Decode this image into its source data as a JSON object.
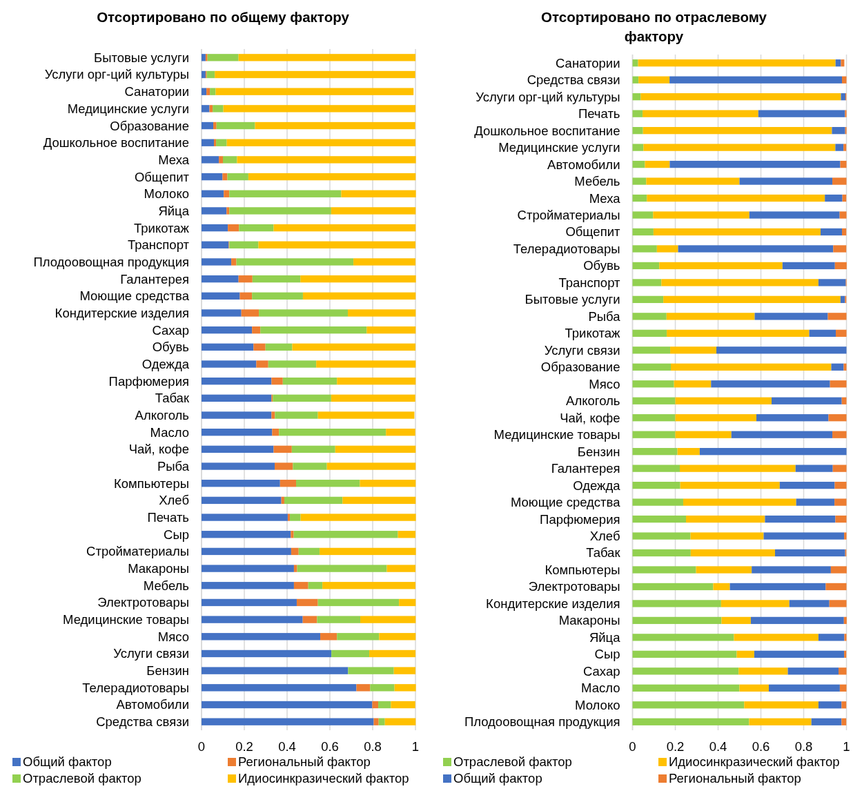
{
  "chart_data": [
    {
      "type": "bar",
      "orientation": "horizontal",
      "stacked": true,
      "title": "Отсортировано по общему фактору",
      "categories": [
        "Бытовые услуги",
        "Услуги орг-ций культуры",
        "Санатории",
        "Медицинские услуги",
        "Образование",
        "Дошкольное воспитание",
        "Меха",
        "Общепит",
        "Молоко",
        "Яйца",
        "Трикотаж",
        "Транспорт",
        "Плодоовощная продукция",
        "Галантерея",
        "Моющие средства",
        "Кондитерские изделия",
        "Сахар",
        "Обувь",
        "Одежда",
        "Парфюмерия",
        "Табак",
        "Алкоголь",
        "Масло",
        "Чай, кофе",
        "Рыба",
        "Компьютеры",
        "Хлеб",
        "Печать",
        "Сыр",
        "Стройматериалы",
        "Макароны",
        "Мебель",
        "Электротовары",
        "Медицинские товары",
        "Мясо",
        "Услуги связи",
        "Бензин",
        "Телерадиотовары",
        "Автомобили",
        "Средства связи"
      ],
      "series": [
        {
          "name": "Общий фактор",
          "color": "#4472c4",
          "values": [
            0.019,
            0.019,
            0.023,
            0.037,
            0.055,
            0.058,
            0.081,
            0.098,
            0.104,
            0.117,
            0.123,
            0.127,
            0.139,
            0.173,
            0.179,
            0.186,
            0.236,
            0.243,
            0.256,
            0.327,
            0.327,
            0.327,
            0.33,
            0.337,
            0.342,
            0.367,
            0.373,
            0.403,
            0.417,
            0.419,
            0.432,
            0.432,
            0.445,
            0.473,
            0.555,
            0.607,
            0.685,
            0.724,
            0.798,
            0.805
          ]
        },
        {
          "name": "Региональный фактор",
          "color": "#ed7d31",
          "values": [
            0.009,
            0.005,
            0.016,
            0.015,
            0.015,
            0.01,
            0.019,
            0.023,
            0.026,
            0.013,
            0.052,
            0.003,
            0.024,
            0.065,
            0.057,
            0.082,
            0.039,
            0.056,
            0.056,
            0.053,
            0.006,
            0.016,
            0.032,
            0.085,
            0.085,
            0.075,
            0.014,
            0.01,
            0.014,
            0.035,
            0.015,
            0.067,
            0.099,
            0.067,
            0.078,
            0,
            0,
            0.064,
            0.028,
            0.023
          ]
        },
        {
          "name": "Отраслевой фактор",
          "color": "#92d050",
          "values": [
            0.145,
            0.038,
            0.027,
            0.05,
            0.18,
            0.05,
            0.066,
            0.098,
            0.523,
            0.476,
            0.162,
            0.136,
            0.547,
            0.224,
            0.238,
            0.416,
            0.497,
            0.125,
            0.224,
            0.253,
            0.273,
            0.201,
            0.5,
            0.203,
            0.159,
            0.298,
            0.272,
            0.05,
            0.487,
            0.098,
            0.419,
            0.066,
            0.379,
            0.202,
            0.197,
            0.177,
            0.214,
            0.114,
            0.059,
            0.029
          ]
        },
        {
          "name": "Идиосинкразический фактор",
          "color": "#ffc000",
          "values": [
            0.827,
            0.937,
            0.925,
            0.898,
            0.749,
            0.882,
            0.836,
            0.782,
            0.349,
            0.395,
            0.664,
            0.734,
            0.29,
            0.54,
            0.527,
            0.317,
            0.229,
            0.576,
            0.465,
            0.368,
            0.393,
            0.451,
            0.137,
            0.376,
            0.415,
            0.261,
            0.342,
            0.539,
            0.082,
            0.45,
            0.134,
            0.435,
            0.078,
            0.259,
            0.171,
            0.216,
            0.101,
            0.1,
            0.114,
            0.144
          ]
        }
      ],
      "xlim": [
        0,
        1
      ],
      "xticks": [
        0,
        0.2,
        0.4,
        0.6,
        0.8,
        1
      ],
      "grid": "x",
      "legend": "bottom"
    },
    {
      "type": "bar",
      "orientation": "horizontal",
      "stacked": true,
      "title": "Отсортировано по отраслевому фактору",
      "categories": [
        "Санатории",
        "Средства связи",
        "Услуги орг-ций культуры",
        "Печать",
        "Дошкольное воспитание",
        "Медицинские услуги",
        "Автомобили",
        "Мебель",
        "Меха",
        "Стройматериалы",
        "Общепит",
        "Телерадиотовары",
        "Обувь",
        "Транспорт",
        "Бытовые услуги",
        "Рыба",
        "Трикотаж",
        "Услуги связи",
        "Образование",
        "Мясо",
        "Алкоголь",
        "Чай, кофе",
        "Медицинские товары",
        "Бензин",
        "Галантерея",
        "Одежда",
        "Моющие средства",
        "Парфюмерия",
        "Хлеб",
        "Табак",
        "Компьютеры",
        "Электротовары",
        "Кондитерские изделия",
        "Макароны",
        "Яйца",
        "Сыр",
        "Сахар",
        "Масло",
        "Молоко",
        "Плодоовощная продукция"
      ],
      "series": [
        {
          "name": "Отраслевой фактор",
          "color": "#92d050",
          "values": [
            0.026,
            0.028,
            0.038,
            0.047,
            0.049,
            0.051,
            0.058,
            0.064,
            0.067,
            0.096,
            0.098,
            0.114,
            0.125,
            0.135,
            0.144,
            0.159,
            0.16,
            0.176,
            0.179,
            0.194,
            0.2,
            0.2,
            0.2,
            0.21,
            0.221,
            0.223,
            0.237,
            0.25,
            0.271,
            0.272,
            0.297,
            0.377,
            0.414,
            0.416,
            0.474,
            0.487,
            0.496,
            0.5,
            0.522,
            0.545
          ]
        },
        {
          "name": "Идиосинкразический фактор",
          "color": "#ffc000",
          "values": [
            0.923,
            0.145,
            0.936,
            0.541,
            0.883,
            0.897,
            0.116,
            0.436,
            0.832,
            0.45,
            0.781,
            0.099,
            0.576,
            0.734,
            0.828,
            0.412,
            0.666,
            0.216,
            0.75,
            0.173,
            0.45,
            0.379,
            0.262,
            0.104,
            0.541,
            0.465,
            0.528,
            0.369,
            0.342,
            0.394,
            0.26,
            0.078,
            0.319,
            0.137,
            0.395,
            0.082,
            0.23,
            0.137,
            0.347,
            0.291
          ]
        },
        {
          "name": "Общий фактор",
          "color": "#4472c4",
          "values": [
            0.025,
            0.806,
            0.021,
            0.405,
            0.062,
            0.038,
            0.797,
            0.434,
            0.082,
            0.422,
            0.1,
            0.725,
            0.245,
            0.128,
            0.021,
            0.342,
            0.124,
            0.608,
            0.058,
            0.556,
            0.328,
            0.337,
            0.472,
            0.686,
            0.174,
            0.257,
            0.179,
            0.329,
            0.376,
            0.328,
            0.37,
            0.448,
            0.187,
            0.435,
            0.121,
            0.42,
            0.237,
            0.332,
            0.108,
            0.141
          ]
        },
        {
          "name": "Региональный фактор",
          "color": "#ed7d31",
          "values": [
            0.016,
            0.021,
            0.004,
            0.007,
            0.006,
            0.013,
            0.029,
            0.066,
            0.018,
            0.032,
            0.02,
            0.061,
            0.055,
            0.003,
            0.006,
            0.087,
            0.05,
            0,
            0.013,
            0.077,
            0.022,
            0.084,
            0.066,
            0,
            0.064,
            0.055,
            0.056,
            0.052,
            0.011,
            0.005,
            0.074,
            0.097,
            0.08,
            0.013,
            0.01,
            0.01,
            0.037,
            0.031,
            0.022,
            0.022
          ]
        }
      ],
      "xlim": [
        0,
        1
      ],
      "xticks": [
        0,
        0.2,
        0.4,
        0.6,
        0.8,
        1
      ],
      "grid": "x",
      "legend": "bottom"
    }
  ]
}
